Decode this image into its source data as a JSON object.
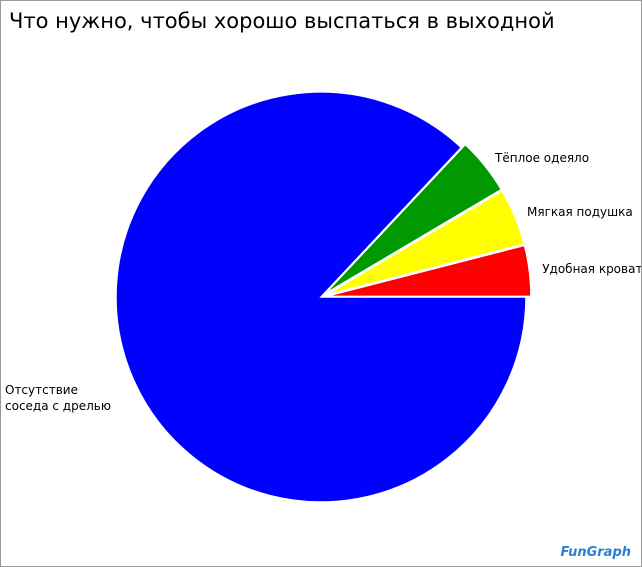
{
  "chart_data": {
    "type": "pie",
    "title": "Что нужно, чтобы хорошо выспаться в выходной",
    "categories": [
      "Удобная кровать",
      "Мягкая подушка",
      "Тёплое одеяло",
      "Отсутствие соседа с дрелью"
    ],
    "values": [
      4,
      4.5,
      4.5,
      87
    ],
    "colors": [
      "#ff0000",
      "#ffff00",
      "#009900",
      "#0000ff"
    ],
    "watermark": "FunGraph"
  }
}
